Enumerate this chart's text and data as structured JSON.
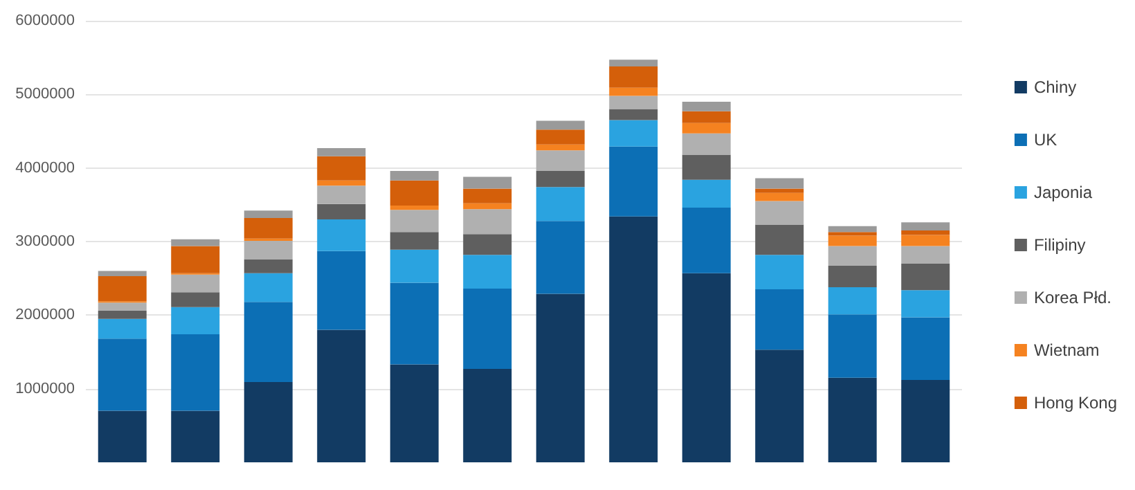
{
  "chart_data": {
    "type": "bar",
    "stacked": true,
    "categories": [
      null,
      null,
      null,
      null,
      null,
      null,
      null,
      null,
      null,
      null,
      null,
      null
    ],
    "series": [
      {
        "name": "Chiny",
        "color": "#123b63",
        "values": [
          700000,
          700000,
          1090000,
          1800000,
          1330000,
          1270000,
          2290000,
          3340000,
          2570000,
          1530000,
          1150000,
          1120000
        ]
      },
      {
        "name": "UK",
        "color": "#0c6fb5",
        "values": [
          980000,
          1040000,
          1090000,
          1070000,
          1110000,
          1090000,
          990000,
          950000,
          890000,
          820000,
          860000,
          850000
        ]
      },
      {
        "name": "Japonia",
        "color": "#2aa3e0",
        "values": [
          270000,
          370000,
          390000,
          430000,
          450000,
          460000,
          460000,
          360000,
          380000,
          470000,
          370000,
          370000
        ]
      },
      {
        "name": "Filipiny",
        "color": "#5f5f5f",
        "values": [
          110000,
          200000,
          190000,
          210000,
          240000,
          280000,
          220000,
          150000,
          340000,
          410000,
          290000,
          360000
        ]
      },
      {
        "name": "Korea Płd.",
        "color": "#b0b0b0",
        "values": [
          110000,
          240000,
          250000,
          250000,
          300000,
          340000,
          280000,
          180000,
          290000,
          320000,
          270000,
          240000
        ]
      },
      {
        "name": "Wietnam",
        "color": "#f58220",
        "values": [
          20000,
          20000,
          30000,
          70000,
          60000,
          80000,
          80000,
          110000,
          140000,
          110000,
          140000,
          150000
        ]
      },
      {
        "name": "Hong Kong",
        "color": "#d45f0a",
        "values": [
          340000,
          370000,
          280000,
          330000,
          340000,
          200000,
          200000,
          290000,
          160000,
          60000,
          50000,
          60000
        ]
      },
      {
        "color": "#9a9a9a",
        "values": [
          70000,
          90000,
          100000,
          110000,
          130000,
          160000,
          120000,
          90000,
          130000,
          140000,
          80000,
          110000
        ]
      }
    ],
    "ylim": [
      0,
      6000000
    ],
    "yticks": [
      1000000,
      2000000,
      3000000,
      4000000,
      5000000,
      6000000
    ],
    "grid": "y",
    "legend": "right"
  }
}
